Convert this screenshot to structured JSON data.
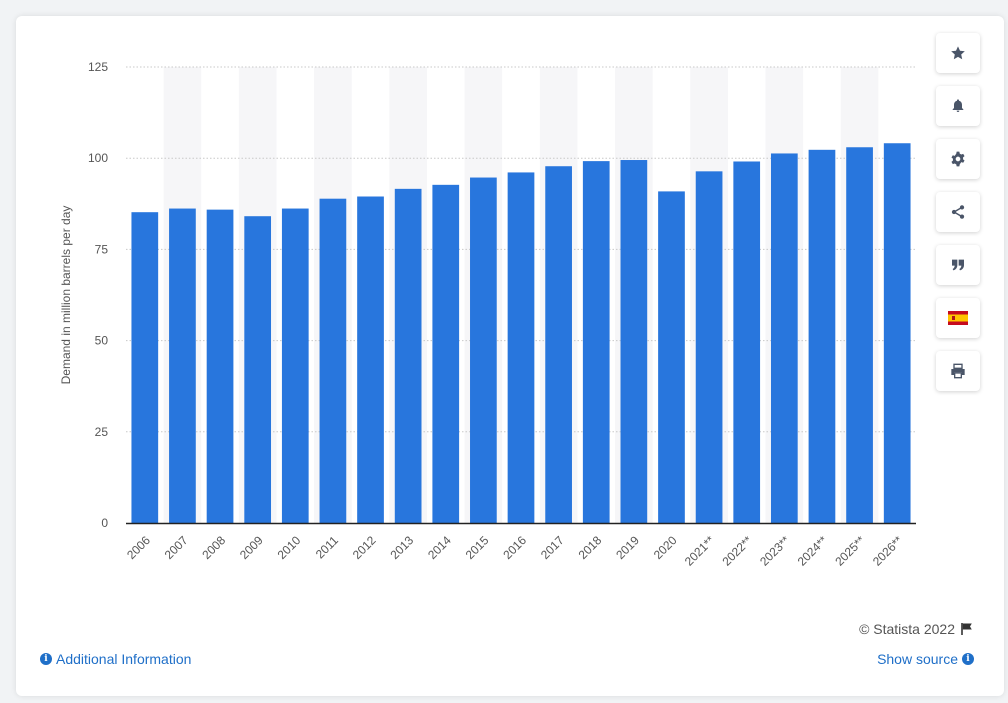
{
  "chart_data": {
    "type": "bar",
    "categories": [
      "2006",
      "2007",
      "2008",
      "2009",
      "2010",
      "2011",
      "2012",
      "2013",
      "2014",
      "2015",
      "2016",
      "2017",
      "2018",
      "2019",
      "2020",
      "2021**",
      "2022**",
      "2023**",
      "2024**",
      "2025**",
      "2026**"
    ],
    "values": [
      85.2,
      86.2,
      85.9,
      84.1,
      86.2,
      88.9,
      89.5,
      91.6,
      92.7,
      94.7,
      96.1,
      97.8,
      99.2,
      99.5,
      90.9,
      96.4,
      99.1,
      101.3,
      102.3,
      103.0,
      104.1
    ],
    "ylabel": "Demand in million barrels per day",
    "xlabel": "",
    "ylim": [
      0,
      125
    ],
    "yticks": [
      0,
      25,
      50,
      75,
      100,
      125
    ],
    "grid": true,
    "bar_color": "#2876dd"
  },
  "toolbar": {
    "items": [
      "star-icon",
      "bell-icon",
      "gear-icon",
      "share-icon",
      "quote-icon",
      "spain-flag-icon",
      "print-icon"
    ]
  },
  "footer": {
    "credit": "© Statista 2022",
    "additional_info": "Additional Information",
    "show_source": "Show source"
  },
  "colors": {
    "link": "#1f6fc8",
    "bar": "#2876dd",
    "band": "#f6f6f8",
    "icon": "#4a5568"
  }
}
